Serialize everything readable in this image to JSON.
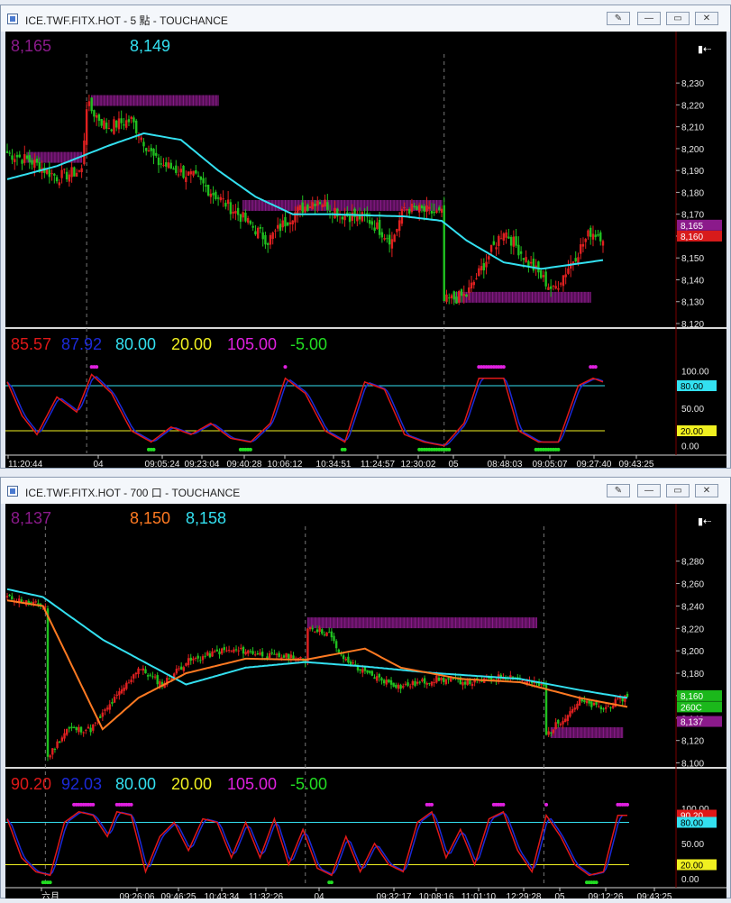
{
  "windows": [
    {
      "title": "ICE.TWF.FITX.HOT - 5 點 - TOUCHANCE",
      "buttons": {
        "config": "",
        "minimize": "—",
        "restore": "▭",
        "close": "✕"
      },
      "cursor_menu_icon": "▮⇠"
    },
    {
      "title": "ICE.TWF.FITX.HOT - 700 口 - TOUCHANCE",
      "buttons": {
        "config": "",
        "minimize": "—",
        "restore": "▭",
        "close": "✕"
      },
      "cursor_menu_icon": "▮⇠"
    }
  ],
  "chart_data": [
    {
      "type": "candlestick",
      "header_values": [
        "8,165",
        "8,149"
      ],
      "header_colors": [
        "#8b1a8b",
        "#33e0f0"
      ],
      "ylim": [
        8120,
        8235
      ],
      "y_ticks": [
        "8,230",
        "8,220",
        "8,210",
        "8,200",
        "8,190",
        "8,180",
        "8,170",
        "8,160",
        "8,150",
        "8,140",
        "8,130",
        "8,120"
      ],
      "price_tags": [
        {
          "label": "8,165",
          "value": 8165,
          "color": "#8b1a8b"
        },
        {
          "label": "8,160",
          "value": 8160,
          "color": "#d81b1b"
        }
      ],
      "close_anchors": [
        [
          0,
          8198
        ],
        [
          10,
          8194
        ],
        [
          20,
          8187
        ],
        [
          30,
          8190
        ],
        [
          32,
          8220
        ],
        [
          40,
          8210
        ],
        [
          50,
          8213
        ],
        [
          60,
          8194
        ],
        [
          75,
          8187
        ],
        [
          90,
          8173
        ],
        [
          105,
          8158
        ],
        [
          115,
          8170
        ],
        [
          125,
          8177
        ],
        [
          135,
          8170
        ],
        [
          145,
          8168
        ],
        [
          155,
          8158
        ],
        [
          160,
          8173
        ],
        [
          175,
          8170
        ],
        [
          176,
          8130
        ],
        [
          185,
          8133
        ],
        [
          200,
          8163
        ],
        [
          210,
          8148
        ],
        [
          220,
          8135
        ],
        [
          235,
          8162
        ],
        [
          240,
          8160
        ]
      ],
      "ma_anchors": [
        [
          0,
          8186
        ],
        [
          20,
          8192
        ],
        [
          40,
          8201
        ],
        [
          55,
          8207
        ],
        [
          70,
          8204
        ],
        [
          85,
          8190
        ],
        [
          100,
          8178
        ],
        [
          115,
          8170
        ],
        [
          130,
          8170
        ],
        [
          160,
          8169
        ],
        [
          175,
          8167
        ],
        [
          185,
          8158
        ],
        [
          200,
          8148
        ],
        [
          215,
          8145
        ],
        [
          240,
          8149
        ]
      ],
      "session_breaks": [
        32,
        176
      ],
      "bands": [
        {
          "from": 34,
          "to": 85,
          "value": 8222
        },
        {
          "from": 95,
          "to": 175,
          "value": 8174
        },
        {
          "from": 180,
          "to": 235,
          "value": 8132
        },
        {
          "from": 8,
          "to": 30,
          "value": 8196
        }
      ],
      "stoch": {
        "labels": [
          "85.57",
          "87.92",
          "80.00",
          "20.00",
          "105.00",
          "-5.00"
        ],
        "colors": [
          "#e01818",
          "#1c2ad8",
          "#33e0f0",
          "#f0f020",
          "#e020e0",
          "#22dd22"
        ],
        "k_last": 85.57,
        "d_last": 87.92,
        "overbought": 80,
        "oversold": 20,
        "upper_dot": 105,
        "lower_dot": -5,
        "y_ticks": [
          "100.00",
          "50.00",
          "0.00"
        ],
        "tags": [
          {
            "label": "80.00",
            "value": 80,
            "color": "#33e0f0"
          },
          {
            "label": "20.00",
            "value": 20,
            "color": "#f0f020"
          }
        ],
        "k_anchors": [
          [
            0,
            85
          ],
          [
            6,
            40
          ],
          [
            12,
            15
          ],
          [
            20,
            65
          ],
          [
            28,
            45
          ],
          [
            34,
            95
          ],
          [
            42,
            70
          ],
          [
            50,
            20
          ],
          [
            58,
            5
          ],
          [
            66,
            25
          ],
          [
            74,
            15
          ],
          [
            82,
            30
          ],
          [
            90,
            10
          ],
          [
            98,
            5
          ],
          [
            106,
            30
          ],
          [
            112,
            90
          ],
          [
            120,
            70
          ],
          [
            128,
            20
          ],
          [
            136,
            5
          ],
          [
            144,
            85
          ],
          [
            152,
            75
          ],
          [
            160,
            15
          ],
          [
            168,
            5
          ],
          [
            176,
            0
          ],
          [
            184,
            30
          ],
          [
            190,
            90
          ],
          [
            200,
            90
          ],
          [
            206,
            20
          ],
          [
            214,
            5
          ],
          [
            222,
            5
          ],
          [
            230,
            80
          ],
          [
            236,
            90
          ],
          [
            240,
            85
          ]
        ]
      },
      "x_ticks": [
        "11:20:44",
        "04",
        "09:05:24",
        "09:23:04",
        "09:40:28",
        "10:06:12",
        "10:34:51",
        "11:24:57",
        "12:30:02",
        "05",
        "08:48:03",
        "09:05:07",
        "09:27:40",
        "09:43:25"
      ]
    },
    {
      "type": "candlestick",
      "header_values": [
        "8,137",
        "8,150",
        "8,158"
      ],
      "header_colors": [
        "#8b1a8b",
        "#ff7a22",
        "#33e0f0"
      ],
      "ylim": [
        8090,
        8295
      ],
      "y_ticks": [
        "8,280",
        "8,260",
        "8,240",
        "8,220",
        "8,200",
        "8,180",
        "8,160",
        "8,140",
        "8,120",
        "8,100"
      ],
      "price_tags": [
        {
          "label": "8,160",
          "value": 8160,
          "color": "#1bb81b"
        },
        {
          "label": "260C",
          "value": 8150,
          "color": "#1bb81b"
        },
        {
          "label": "8,137",
          "value": 8137,
          "color": "#8b1a8b"
        }
      ],
      "close_anchors": [
        [
          0,
          8248
        ],
        [
          10,
          8242
        ],
        [
          16,
          8240
        ],
        [
          17,
          8105
        ],
        [
          25,
          8130
        ],
        [
          35,
          8130
        ],
        [
          50,
          8170
        ],
        [
          55,
          8185
        ],
        [
          65,
          8170
        ],
        [
          75,
          8190
        ],
        [
          90,
          8200
        ],
        [
          100,
          8200
        ],
        [
          110,
          8195
        ],
        [
          120,
          8195
        ],
        [
          125,
          8190
        ],
        [
          126,
          8222
        ],
        [
          135,
          8215
        ],
        [
          140,
          8195
        ],
        [
          150,
          8180
        ],
        [
          165,
          8168
        ],
        [
          180,
          8175
        ],
        [
          195,
          8172
        ],
        [
          210,
          8178
        ],
        [
          225,
          8168
        ],
        [
          226,
          8125
        ],
        [
          240,
          8155
        ],
        [
          250,
          8148
        ],
        [
          260,
          8160
        ]
      ],
      "ma_fast_anchors": [
        [
          0,
          8245
        ],
        [
          15,
          8240
        ],
        [
          40,
          8130
        ],
        [
          55,
          8158
        ],
        [
          75,
          8180
        ],
        [
          100,
          8193
        ],
        [
          125,
          8192
        ],
        [
          150,
          8202
        ],
        [
          165,
          8185
        ],
        [
          190,
          8175
        ],
        [
          215,
          8172
        ],
        [
          240,
          8158
        ],
        [
          260,
          8150
        ]
      ],
      "ma_slow_anchors": [
        [
          0,
          8255
        ],
        [
          15,
          8248
        ],
        [
          40,
          8210
        ],
        [
          75,
          8170
        ],
        [
          100,
          8185
        ],
        [
          125,
          8190
        ],
        [
          150,
          8186
        ],
        [
          180,
          8180
        ],
        [
          215,
          8175
        ],
        [
          240,
          8165
        ],
        [
          260,
          8158
        ]
      ],
      "session_breaks": [
        16,
        125,
        225
      ],
      "bands": [
        {
          "from": 126,
          "to": 222,
          "value": 8225
        },
        {
          "from": 228,
          "to": 258,
          "value": 8127
        }
      ],
      "stoch": {
        "labels": [
          "90.20",
          "92.03",
          "80.00",
          "20.00",
          "105.00",
          "-5.00"
        ],
        "colors": [
          "#e01818",
          "#1c2ad8",
          "#33e0f0",
          "#f0f020",
          "#e020e0",
          "#22dd22"
        ],
        "k_last": 90.2,
        "d_last": 92.03,
        "overbought": 80,
        "oversold": 20,
        "upper_dot": 105,
        "lower_dot": -5,
        "y_ticks": [
          "100.00",
          "50.00",
          "0.00"
        ],
        "tags": [
          {
            "label": "90.20",
            "value": 90.2,
            "color": "#e01818"
          },
          {
            "label": "80.00",
            "value": 80,
            "color": "#33e0f0"
          },
          {
            "label": "20.00",
            "value": 20,
            "color": "#f0f020"
          }
        ],
        "k_anchors": [
          [
            0,
            85
          ],
          [
            6,
            30
          ],
          [
            12,
            10
          ],
          [
            18,
            5
          ],
          [
            24,
            80
          ],
          [
            30,
            95
          ],
          [
            36,
            90
          ],
          [
            42,
            60
          ],
          [
            46,
            95
          ],
          [
            52,
            90
          ],
          [
            58,
            10
          ],
          [
            64,
            60
          ],
          [
            70,
            80
          ],
          [
            76,
            40
          ],
          [
            82,
            85
          ],
          [
            88,
            80
          ],
          [
            94,
            30
          ],
          [
            100,
            80
          ],
          [
            106,
            30
          ],
          [
            112,
            85
          ],
          [
            118,
            20
          ],
          [
            124,
            70
          ],
          [
            130,
            15
          ],
          [
            136,
            5
          ],
          [
            142,
            60
          ],
          [
            148,
            10
          ],
          [
            154,
            50
          ],
          [
            160,
            20
          ],
          [
            166,
            10
          ],
          [
            172,
            80
          ],
          [
            178,
            95
          ],
          [
            184,
            30
          ],
          [
            190,
            70
          ],
          [
            196,
            20
          ],
          [
            202,
            85
          ],
          [
            208,
            95
          ],
          [
            214,
            40
          ],
          [
            220,
            10
          ],
          [
            226,
            90
          ],
          [
            232,
            60
          ],
          [
            238,
            20
          ],
          [
            244,
            5
          ],
          [
            250,
            10
          ],
          [
            256,
            90
          ],
          [
            260,
            90
          ]
        ]
      },
      "x_ticks": [
        "六月",
        "09:26:06",
        "09:46:25",
        "10:43:34",
        "11:32:26",
        "04",
        "09:32:17",
        "10:08:16",
        "11:01:10",
        "12:29:28",
        "05",
        "09:12:26",
        "09:43:25"
      ]
    }
  ]
}
